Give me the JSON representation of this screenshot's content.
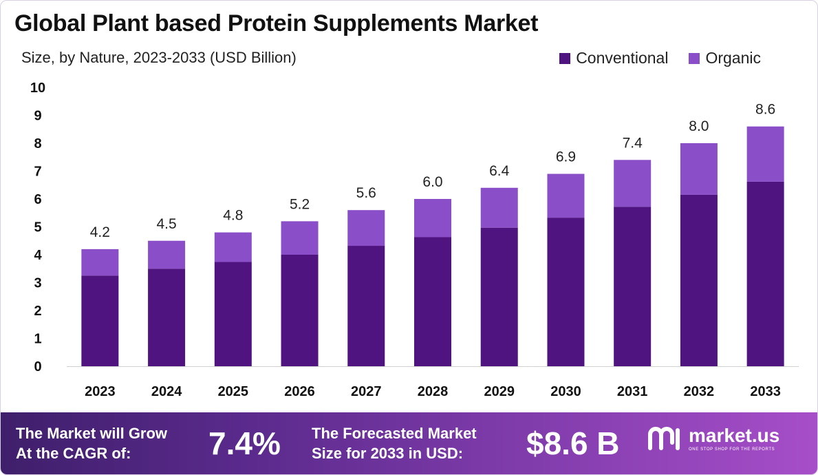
{
  "header": {
    "title": "Global Plant based Protein Supplements Market",
    "subtitle": "Size, by Nature, 2023-2033 (USD Billion)"
  },
  "legend": {
    "items": [
      {
        "label": "Conventional",
        "color": "#4f1480"
      },
      {
        "label": "Organic",
        "color": "#8a4ec8"
      }
    ]
  },
  "chart_data": {
    "type": "bar",
    "stacked": true,
    "categories": [
      "2023",
      "2024",
      "2025",
      "2026",
      "2027",
      "2028",
      "2029",
      "2030",
      "2031",
      "2032",
      "2033"
    ],
    "series": [
      {
        "name": "Conventional",
        "color": "#4f1480",
        "values": [
          3.25,
          3.5,
          3.74,
          4.0,
          4.32,
          4.63,
          4.97,
          5.33,
          5.72,
          6.15,
          6.62
        ]
      },
      {
        "name": "Organic",
        "color": "#8a4ec8",
        "values": [
          0.95,
          1.0,
          1.06,
          1.2,
          1.28,
          1.37,
          1.43,
          1.57,
          1.68,
          1.85,
          1.98
        ]
      }
    ],
    "totals": [
      "4.2",
      "4.5",
      "4.8",
      "5.2",
      "5.6",
      "6.0",
      "6.4",
      "6.9",
      "7.4",
      "8.0",
      "8.6"
    ],
    "yticks": [
      0,
      1,
      2,
      3,
      4,
      5,
      6,
      7,
      8,
      9,
      10
    ],
    "ylim": [
      0,
      10
    ],
    "grid": false,
    "legend_position": "top-right"
  },
  "footer": {
    "cagr_line1": "The Market will Grow",
    "cagr_line2": "At the CAGR of:",
    "cagr_value": "7.4%",
    "forecast_line1": "The Forecasted Market",
    "forecast_line2": "Size for 2033 in USD:",
    "forecast_value": "$8.6 B",
    "brand_name": "market.us",
    "brand_tagline": "ONE STOP SHOP FOR THE REPORTS"
  }
}
